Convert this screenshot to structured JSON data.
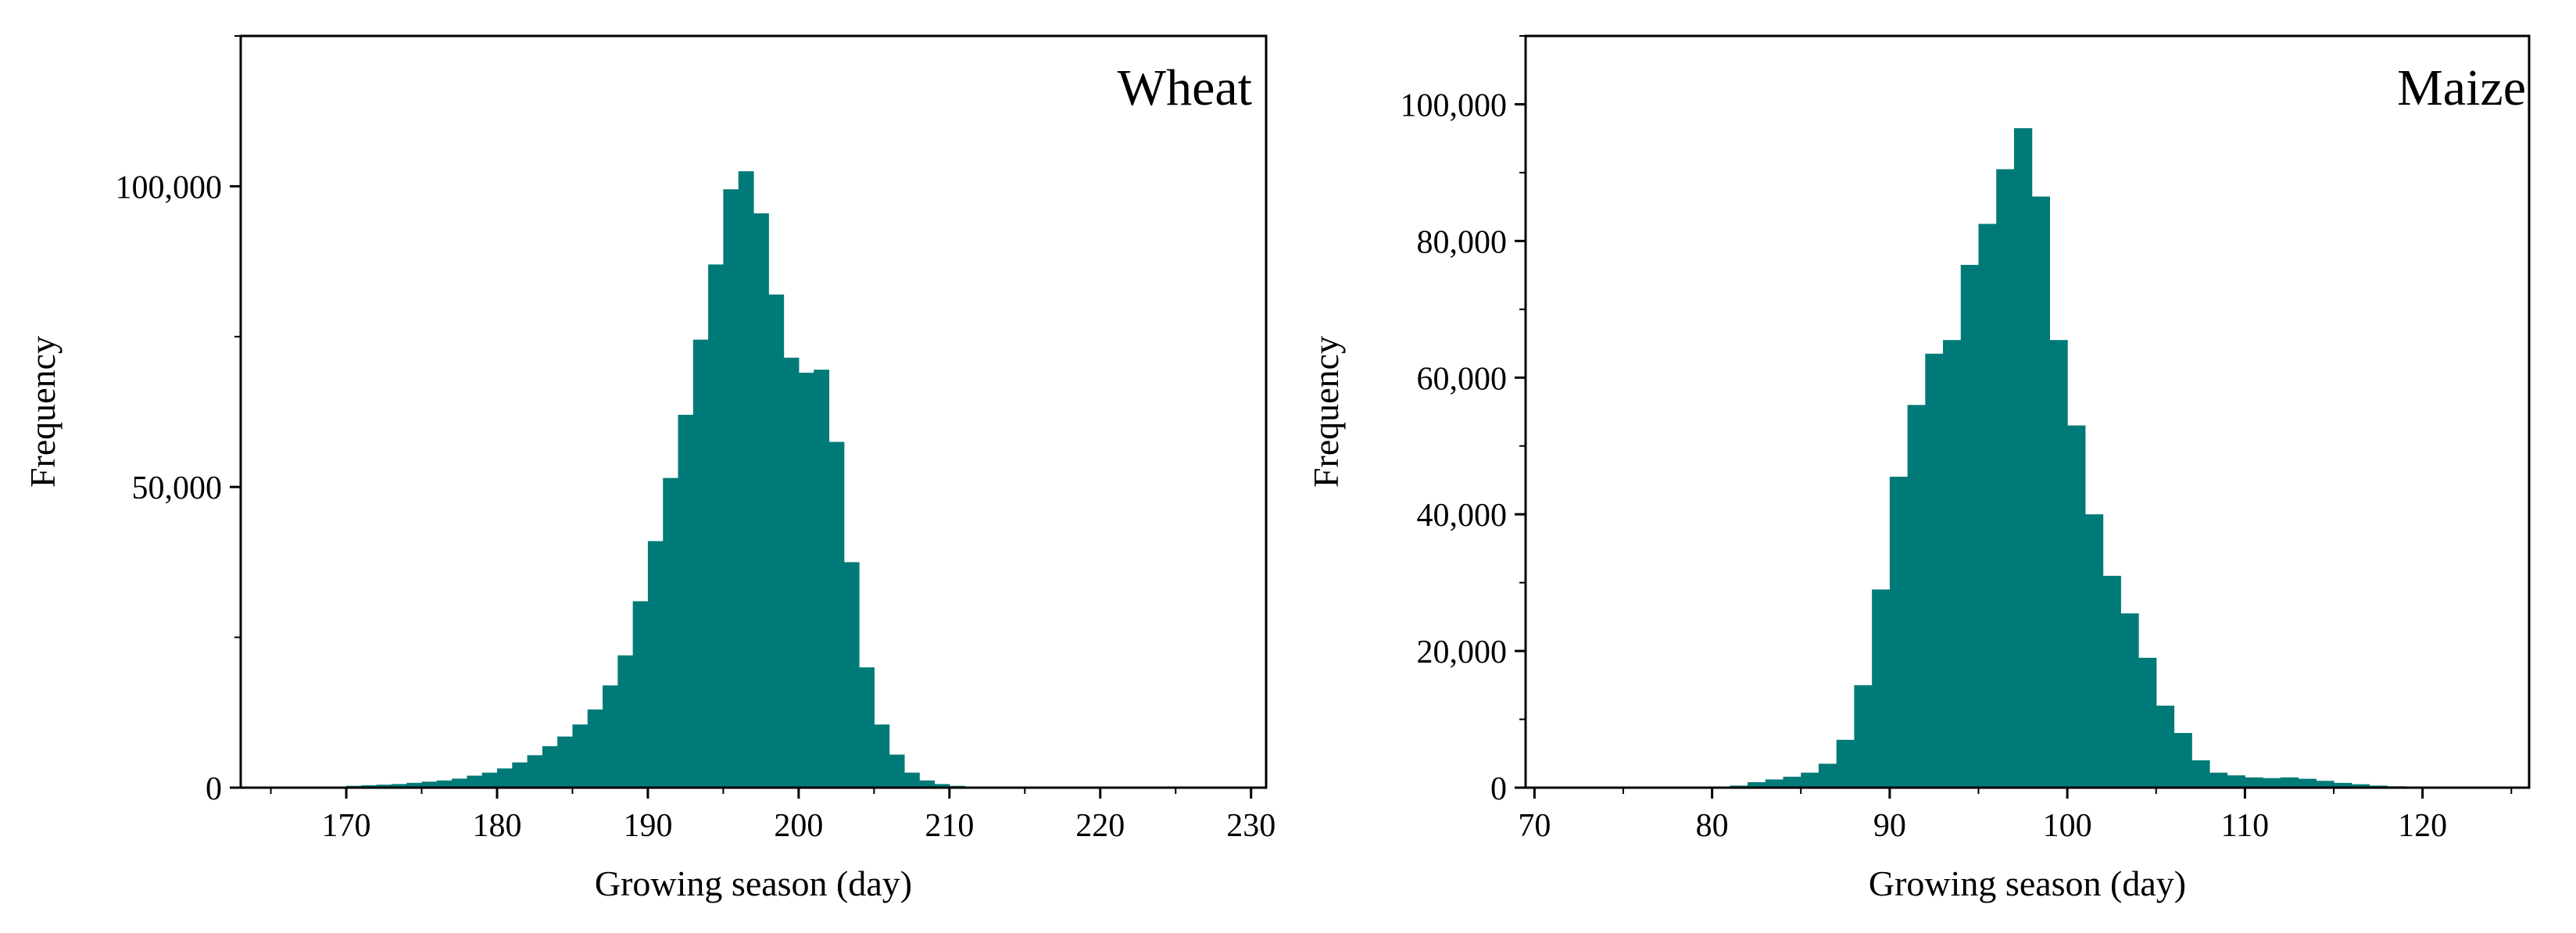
{
  "chart_data": [
    {
      "type": "bar",
      "panel_label": "Wheat",
      "xlabel": "Growing season (day)",
      "ylabel": "Frequency",
      "xlim": [
        163,
        231
      ],
      "ylim": [
        0,
        125000
      ],
      "xticks": [
        170,
        180,
        190,
        200,
        210,
        220,
        230
      ],
      "xtick_labels": [
        "170",
        "180",
        "190",
        "200",
        "210",
        "220",
        "230"
      ],
      "yticks": [
        0,
        50000,
        100000
      ],
      "ytick_labels": [
        "0",
        "50,000",
        "100,000"
      ],
      "bin_width": 1,
      "bin_start": 170,
      "values": [
        300,
        400,
        500,
        600,
        800,
        1000,
        1200,
        1500,
        2000,
        2500,
        3200,
        4200,
        5400,
        6900,
        8500,
        10500,
        13000,
        17000,
        22000,
        31000,
        41000,
        51500,
        62000,
        74500,
        87000,
        99500,
        102500,
        95500,
        82000,
        71500,
        69000,
        69500,
        57500,
        37500,
        20000,
        10500,
        5500,
        2500,
        1200,
        600,
        300,
        150
      ],
      "bar_color": "#007a78",
      "grid": false
    },
    {
      "type": "bar",
      "panel_label": "Maize",
      "xlabel": "Growing season (day)",
      "ylabel": "Frequency",
      "xlim": [
        69.5,
        126
      ],
      "ylim": [
        0,
        110000
      ],
      "xticks": [
        70,
        80,
        90,
        100,
        110,
        120
      ],
      "xtick_labels": [
        "70",
        "80",
        "90",
        "100",
        "110",
        "120"
      ],
      "yticks": [
        0,
        20000,
        40000,
        60000,
        80000,
        100000
      ],
      "ytick_labels": [
        "0",
        "20,000",
        "40,000",
        "60,000",
        "80,000",
        "100,000"
      ],
      "bin_width": 1,
      "bin_start": 81,
      "values": [
        300,
        800,
        1200,
        1600,
        2200,
        3500,
        7000,
        15000,
        29000,
        45500,
        56000,
        63500,
        65500,
        76500,
        82500,
        90500,
        96500,
        86500,
        65500,
        53000,
        40000,
        31000,
        25500,
        19000,
        12000,
        8000,
        4000,
        2200,
        1800,
        1500,
        1400,
        1500,
        1300,
        1000,
        700,
        500,
        300,
        200
      ],
      "bar_color": "#007a78",
      "grid": false
    }
  ]
}
